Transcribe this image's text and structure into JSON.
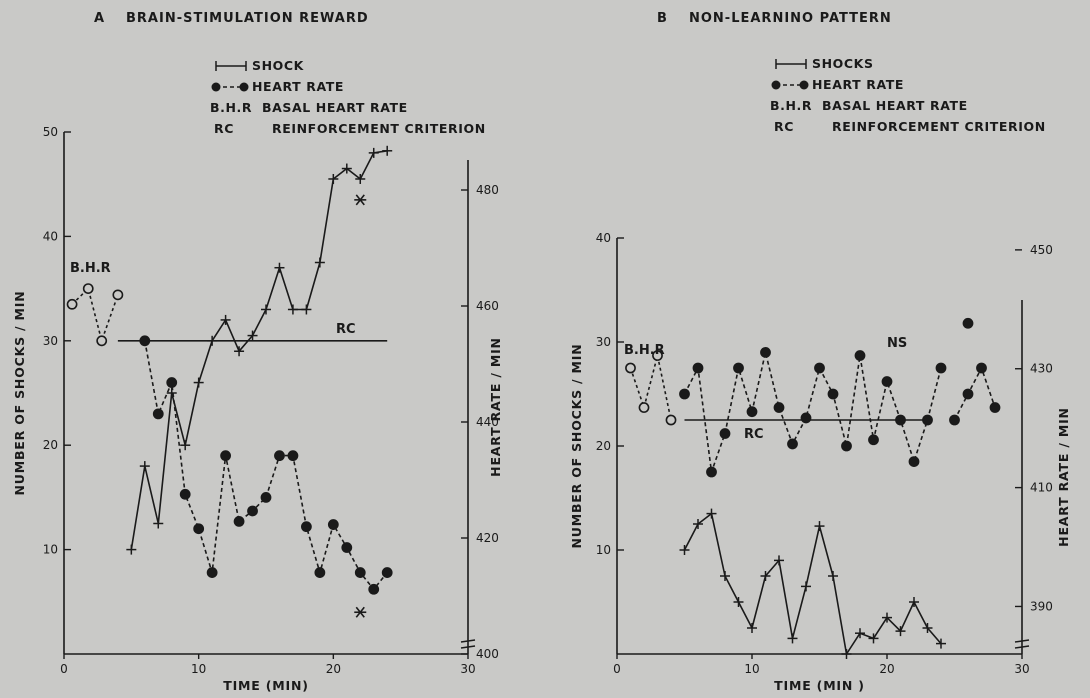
{
  "chart_data": [
    {
      "type": "line",
      "panel": "A",
      "title": "BRAIN-STIMULATION REWARD",
      "xlabel": "TIME (MIN)",
      "ylabel": "NUMBER OF SHOCKS / MIN",
      "y2label": "HEART RATE / MIN",
      "xlim": [
        0,
        30
      ],
      "ylim": [
        0,
        50
      ],
      "y2lim": [
        400,
        490
      ],
      "xticks": [
        "0",
        "10",
        "20",
        "30"
      ],
      "yticks": [
        "10",
        "20",
        "30",
        "40",
        "50"
      ],
      "y2ticks": [
        "400",
        "420",
        "440",
        "460",
        "480"
      ],
      "legend": [
        {
          "key": "shock-line",
          "label": "SHOCK"
        },
        {
          "key": "heart-line",
          "label": "HEART RATE"
        },
        {
          "key": "text",
          "symbol": "B.H.R",
          "label": "BASAL HEART RATE"
        },
        {
          "key": "text",
          "symbol": "RC",
          "label": "REINFORCEMENT CRITERION"
        }
      ],
      "annotations": {
        "bhr": "B.H.R",
        "rc": "RC",
        "asterisk": "*"
      },
      "rc_level": 30,
      "rc_x": [
        4,
        24
      ],
      "bhr_points": {
        "x": [
          0.6,
          1.8,
          2.8,
          4
        ],
        "y": [
          33.5,
          35,
          30,
          34.4
        ]
      },
      "series": [
        {
          "name": "SHOCK",
          "x": [
            5,
            6,
            7,
            8,
            9,
            10,
            11,
            12,
            13,
            14,
            15,
            16,
            17,
            18,
            19,
            20,
            21,
            22,
            23,
            24
          ],
          "y": [
            10,
            18,
            12.5,
            25,
            20,
            26,
            30,
            32,
            29,
            30.5,
            33,
            37,
            33,
            33,
            37.5,
            45.5,
            46.5,
            45.5,
            48,
            48.2
          ]
        },
        {
          "name": "HEART RATE",
          "x": [
            6,
            7,
            8,
            9,
            10,
            11,
            12,
            13,
            14,
            15,
            16,
            17,
            18,
            19,
            20,
            21,
            22,
            23,
            24
          ],
          "y": [
            30,
            23,
            26,
            15.3,
            12,
            7.8,
            19,
            12.7,
            13.7,
            15,
            19,
            19,
            12.2,
            7.8,
            12.4,
            10.2,
            7.8,
            6.2,
            7.8
          ]
        }
      ],
      "stars": [
        {
          "x": 22,
          "y": 43.5
        },
        {
          "x": 22,
          "y": 4
        }
      ]
    },
    {
      "type": "line",
      "panel": "B",
      "title": "NON-LEARNINO PATTERN",
      "xlabel": "TIME (MIN )",
      "ylabel": "NUMBER OF SHOCKS / MIN",
      "y2label": "HEART RATE / MIN",
      "xlim": [
        0,
        30
      ],
      "ylim": [
        0,
        40
      ],
      "y2lim": [
        382,
        452
      ],
      "xticks": [
        "0",
        "10",
        "20",
        "30"
      ],
      "yticks": [
        "10",
        "20",
        "30",
        "40"
      ],
      "y2ticks": [
        "390",
        "410",
        "430",
        "450"
      ],
      "legend": [
        {
          "key": "shock-line",
          "label": "SHOCKS"
        },
        {
          "key": "heart-line",
          "label": "HEART RATE"
        },
        {
          "key": "text",
          "symbol": "B.H.R",
          "label": "BASAL HEART RATE"
        },
        {
          "key": "text",
          "symbol": "RC",
          "label": "REINFORCEMENT CRITERION"
        }
      ],
      "annotations": {
        "bhr": "B.H.R",
        "rc": "RC",
        "ns": "NS"
      },
      "rc_level": 22.5,
      "rc_x": [
        5,
        23
      ],
      "bhr_points": {
        "x": [
          1,
          2,
          3,
          4
        ],
        "y": [
          27.5,
          23.7,
          28.7,
          22.5
        ]
      },
      "series": [
        {
          "name": "SHOCKS",
          "x": [
            5,
            6,
            7,
            8,
            9,
            10,
            11,
            12,
            13,
            14,
            15,
            16,
            17,
            18,
            19,
            20,
            21,
            22,
            23,
            24
          ],
          "y": [
            10,
            12.5,
            13.5,
            7.5,
            5,
            2.5,
            7.5,
            9,
            1.5,
            6.5,
            12.3,
            7.5,
            0,
            2,
            1.5,
            3.5,
            2.2,
            5,
            2.5,
            1
          ]
        },
        {
          "name": "HEART RATE",
          "x": [
            5,
            6,
            7,
            8,
            9,
            10,
            11,
            12,
            13,
            14,
            15,
            16,
            17,
            18,
            19,
            20,
            21,
            22,
            23,
            24
          ],
          "y": [
            25,
            27.5,
            17.5,
            21.2,
            27.5,
            23.3,
            29,
            23.7,
            20.2,
            22.7,
            27.5,
            25,
            20,
            28.7,
            20.6,
            26.2,
            22.5,
            18.5,
            22.5,
            27.5
          ]
        },
        {
          "name": "HEART RATE (continued)",
          "x": [
            25,
            26,
            27,
            28
          ],
          "y": [
            22.5,
            25,
            27.5,
            23.7
          ]
        }
      ],
      "outlier": {
        "x": 26,
        "y": 31.8
      }
    }
  ]
}
